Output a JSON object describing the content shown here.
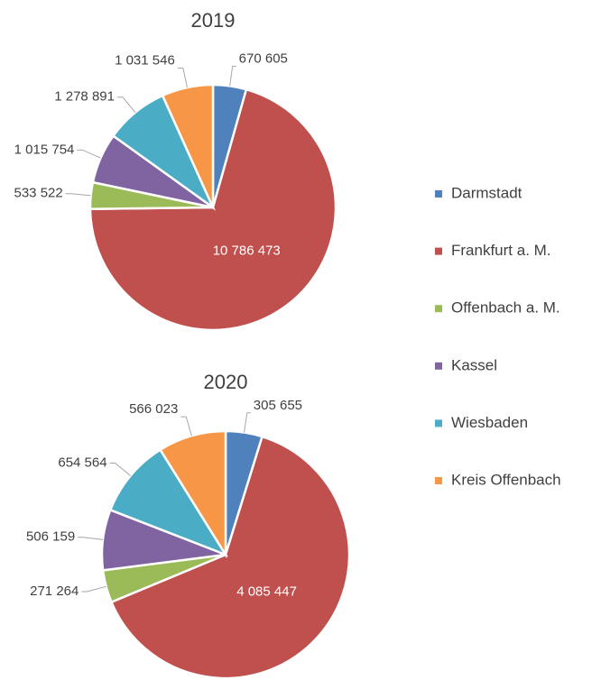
{
  "chart_data": [
    {
      "type": "pie",
      "title": "2019",
      "categories": [
        "Darmstadt",
        "Frankfurt a. M.",
        "Offenbach a. M.",
        "Kassel",
        "Wiesbaden",
        "Kreis Offenbach"
      ],
      "values": [
        670605,
        10786473,
        533522,
        1015754,
        1278891,
        1031546
      ],
      "value_labels": [
        "670 605",
        "10 786 473",
        "533 522",
        "1 015 754",
        "1 278 891",
        "1 031 546"
      ],
      "colors": [
        "#4f81bd",
        "#c0504d",
        "#9bbb59",
        "#8064a2",
        "#4bacc6",
        "#f79646"
      ],
      "legend": "right"
    },
    {
      "type": "pie",
      "title": "2020",
      "categories": [
        "Darmstadt",
        "Frankfurt a. M.",
        "Offenbach a. M.",
        "Kassel",
        "Wiesbaden",
        "Kreis Offenbach"
      ],
      "values": [
        305655,
        4085447,
        271264,
        506159,
        654564,
        566023
      ],
      "value_labels": [
        "305 655",
        "4 085 447",
        "271 264",
        "506 159",
        "654 564",
        "566 023"
      ],
      "colors": [
        "#4f81bd",
        "#c0504d",
        "#9bbb59",
        "#8064a2",
        "#4bacc6",
        "#f79646"
      ]
    }
  ]
}
